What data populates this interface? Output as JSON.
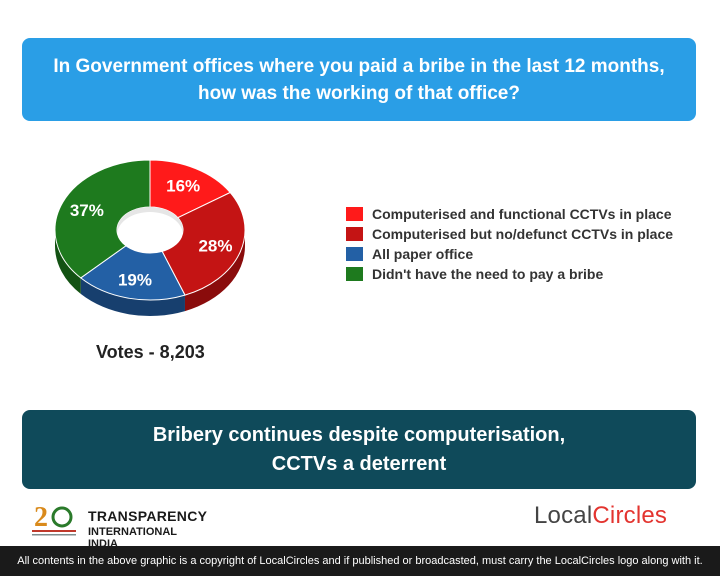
{
  "question": {
    "line1": "In Government offices where you paid a bribe in the last 12 months,",
    "line2": "how was the working of that office?"
  },
  "chart_data": {
    "type": "pie",
    "style": "donut-3d",
    "categories": [
      "Computerised and functional CCTVs in place",
      "Computerised but no/defunct CCTVs in place",
      "All paper office",
      "Didn't have the need to pay a bribe"
    ],
    "values": [
      16,
      28,
      19,
      37
    ],
    "value_labels": [
      "16%",
      "28%",
      "19%",
      "37%"
    ],
    "colors": [
      "#ff1a1a",
      "#c41414",
      "#2360a5",
      "#1e7a1e"
    ],
    "side_colors": [
      "#b30f0f",
      "#8a0c0c",
      "#173f6e",
      "#135213"
    ],
    "legend_position": "right"
  },
  "votes": "Votes - 8,203",
  "conclusion": {
    "line1": "Bribery continues despite computerisation,",
    "line2": "CCTVs a deterrent"
  },
  "logos": {
    "transparency_line1": "TRANSPARENCY",
    "transparency_line2": "INTERNATIONAL INDIA",
    "localcircles_part1": "Local",
    "localcircles_part2": "Circles"
  },
  "footer": "All contents in the above graphic is a copyright of LocalCircles and if published or broadcasted, must carry the LocalCircles logo along with it."
}
